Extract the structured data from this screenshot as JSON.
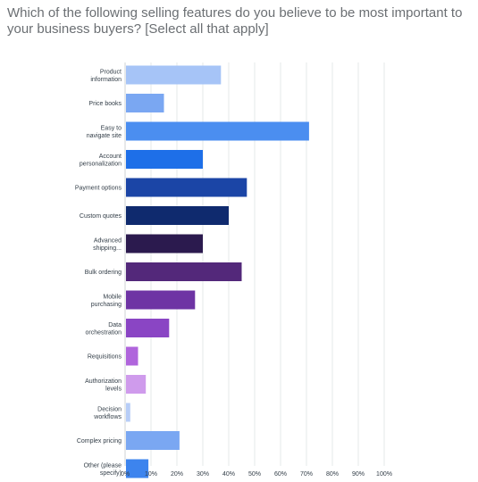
{
  "question": "Which of the following selling features do you believe to be most important to your business buyers? [Select all that apply]",
  "chart_data": {
    "type": "bar",
    "orientation": "horizontal",
    "categories": [
      [
        "Product",
        "information"
      ],
      [
        "Price books"
      ],
      [
        "Easy to",
        "navigate site"
      ],
      [
        "Account",
        "personalization"
      ],
      [
        "Payment options"
      ],
      [
        "Custom quotes"
      ],
      [
        "Advanced",
        "shipping..."
      ],
      [
        "Bulk ordering"
      ],
      [
        "Mobile",
        "purchasing"
      ],
      [
        "Data",
        "orchestration"
      ],
      [
        "Requisitions"
      ],
      [
        "Authorization",
        "levels"
      ],
      [
        "Decision",
        "workflows"
      ],
      [
        "Complex pricing"
      ],
      [
        "Other (please",
        "specify)"
      ]
    ],
    "values": [
      37,
      15,
      71,
      30,
      47,
      40,
      30,
      45,
      27,
      17,
      5,
      8,
      2,
      21,
      9
    ],
    "colors": [
      "#a6c4f7",
      "#7aa7f2",
      "#4b8ef0",
      "#1e6fe8",
      "#1b45a6",
      "#0f2a6e",
      "#2b1a4e",
      "#53287a",
      "#6e34a4",
      "#8a45c4",
      "#b065dc",
      "#cf9bec",
      "#b7cdf7",
      "#7aa7f2",
      "#3d84ee"
    ],
    "xticks": [
      "0%",
      "10%",
      "20%",
      "30%",
      "40%",
      "50%",
      "60%",
      "70%",
      "80%",
      "90%",
      "100%"
    ],
    "xlim": [
      0,
      100
    ],
    "grid": true
  }
}
